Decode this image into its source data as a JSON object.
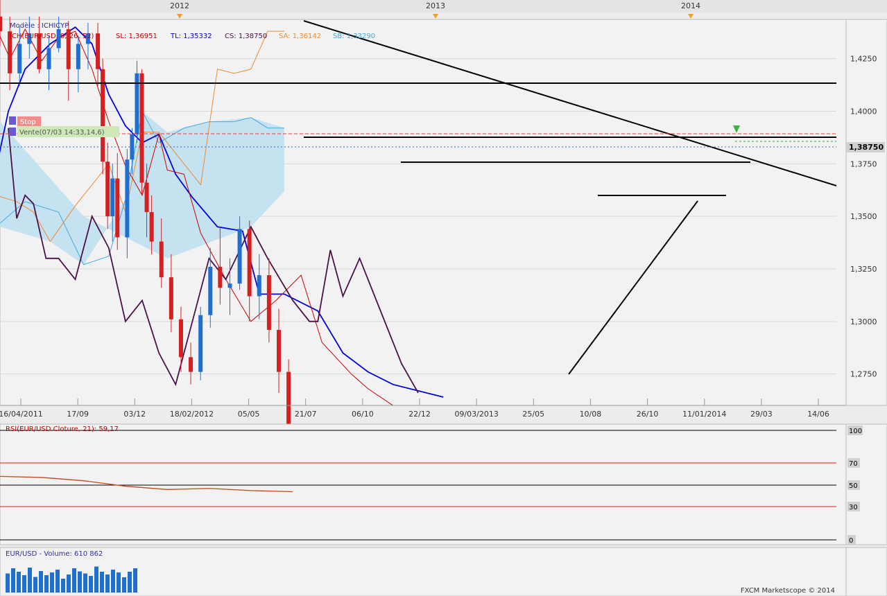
{
  "timeline_labels": {
    "years": [
      {
        "text": "2012",
        "x_date": "2012-01-01"
      },
      {
        "text": "2013",
        "x_date": "2013-01-01"
      },
      {
        "text": "2014",
        "x_date": "2014-01-01"
      }
    ]
  },
  "main_panel": {
    "legend_model": "Modèle : ICHICYP",
    "legend_ichimoku": "ICH(EUR/USD, 9, 26, 52)",
    "legend_sl": "SL: 1,36951",
    "legend_tl": "TL: 1,35332",
    "legend_cs": "CS: 1,38750",
    "legend_sa": "SA: 1,36142",
    "legend_sb": "SB: 1,33290",
    "stop_label": "Stop",
    "vente_label": "Vente(07/03 14:33,14,6)",
    "last_price_label": "1,38750",
    "x_axis_labels": [
      "16/04/2011",
      "17/09",
      "03/12",
      "18/02/2012",
      "05/05",
      "21/07",
      "06/10",
      "22/12",
      "09/03/2013",
      "25/05",
      "10/08",
      "26/10",
      "11/01/2014",
      "29/03",
      "14/06"
    ],
    "y_axis_labels": [
      "1,4250",
      "1,4000",
      "1,3750",
      "1,3500",
      "1,3250",
      "1,3000",
      "1,2750"
    ]
  },
  "rsi_panel": {
    "legend": "RSI(EUR/USD.Cloture, 21): 59,17",
    "levels": [
      "100",
      "70",
      "50",
      "30",
      "0"
    ]
  },
  "volume_panel": {
    "legend": "EUR/USD - Volume: 610 862",
    "copyright": "FXCM Marketscope © 2014"
  },
  "colors": {
    "bull": "#1e6fd0",
    "bear": "#d42020",
    "tenkan": "#cc0000",
    "kijun": "#0000dd",
    "chikou": "#4a1048",
    "senkou_a": "#f08a30",
    "senkou_b": "#45aadd",
    "cloud_bull": "#bfe0f0",
    "cloud_bear": "#f5d7bd",
    "rsi_line": "#c04a18"
  },
  "chart_data": [
    {
      "type": "candlestick",
      "title": "",
      "series": [
        {
          "name": "EUR/USD",
          "values": "weekly OHLC"
        },
        {
          "name": "SL",
          "last": 1.36951
        },
        {
          "name": "TL",
          "last": 1.35332
        },
        {
          "name": "CS",
          "last": 1.3875
        },
        {
          "name": "SA",
          "last": 1.36142
        },
        {
          "name": "SB",
          "last": 1.3329
        }
      ],
      "ylim": [
        1.265,
        1.443
      ],
      "x_range": [
        "2011-04-16",
        "2014-07-26"
      ],
      "ohlc": [
        {
          "x": "2011-04-16",
          "o": 1.445,
          "h": 1.453,
          "l": 1.431,
          "c": 1.438
        },
        {
          "x": "2011-04-30",
          "o": 1.438,
          "h": 1.445,
          "l": 1.41,
          "c": 1.418
        },
        {
          "x": "2011-05-14",
          "o": 1.418,
          "h": 1.44,
          "l": 1.412,
          "c": 1.432
        },
        {
          "x": "2011-05-28",
          "o": 1.432,
          "h": 1.445,
          "l": 1.425,
          "c": 1.437
        },
        {
          "x": "2011-06-11",
          "o": 1.437,
          "h": 1.445,
          "l": 1.418,
          "c": 1.42
        },
        {
          "x": "2011-06-25",
          "o": 1.42,
          "h": 1.436,
          "l": 1.41,
          "c": 1.43
        },
        {
          "x": "2011-07-09",
          "o": 1.43,
          "h": 1.445,
          "l": 1.428,
          "c": 1.439
        },
        {
          "x": "2011-07-23",
          "o": 1.439,
          "h": 1.443,
          "l": 1.405,
          "c": 1.42
        },
        {
          "x": "2011-08-06",
          "o": 1.42,
          "h": 1.436,
          "l": 1.409,
          "c": 1.432
        },
        {
          "x": "2011-08-20",
          "o": 1.432,
          "h": 1.442,
          "l": 1.42,
          "c": 1.437
        },
        {
          "x": "2011-09-03",
          "o": 1.437,
          "h": 1.442,
          "l": 1.412,
          "c": 1.42
        },
        {
          "x": "2011-09-10",
          "o": 1.42,
          "h": 1.425,
          "l": 1.37,
          "c": 1.376
        },
        {
          "x": "2011-09-17",
          "o": 1.376,
          "h": 1.385,
          "l": 1.344,
          "c": 1.35
        },
        {
          "x": "2011-09-24",
          "o": 1.35,
          "h": 1.375,
          "l": 1.338,
          "c": 1.368
        },
        {
          "x": "2011-10-01",
          "o": 1.368,
          "h": 1.38,
          "l": 1.334,
          "c": 1.34
        },
        {
          "x": "2011-10-15",
          "o": 1.34,
          "h": 1.382,
          "l": 1.33,
          "c": 1.377
        },
        {
          "x": "2011-10-22",
          "o": 1.377,
          "h": 1.392,
          "l": 1.37,
          "c": 1.389
        },
        {
          "x": "2011-10-29",
          "o": 1.389,
          "h": 1.424,
          "l": 1.385,
          "c": 1.418
        },
        {
          "x": "2011-11-05",
          "o": 1.418,
          "h": 1.42,
          "l": 1.36,
          "c": 1.366
        },
        {
          "x": "2011-11-12",
          "o": 1.366,
          "h": 1.375,
          "l": 1.34,
          "c": 1.352
        },
        {
          "x": "2011-11-19",
          "o": 1.352,
          "h": 1.36,
          "l": 1.332,
          "c": 1.338
        },
        {
          "x": "2011-12-03",
          "o": 1.338,
          "h": 1.349,
          "l": 1.316,
          "c": 1.321
        },
        {
          "x": "2011-12-17",
          "o": 1.321,
          "h": 1.332,
          "l": 1.295,
          "c": 1.301
        },
        {
          "x": "2011-12-31",
          "o": 1.301,
          "h": 1.307,
          "l": 1.276,
          "c": 1.283
        },
        {
          "x": "2012-01-14",
          "o": 1.283,
          "h": 1.29,
          "l": 1.27,
          "c": 1.276
        },
        {
          "x": "2012-01-28",
          "o": 1.276,
          "h": 1.307,
          "l": 1.272,
          "c": 1.303
        },
        {
          "x": "2012-02-11",
          "o": 1.303,
          "h": 1.335,
          "l": 1.297,
          "c": 1.326
        },
        {
          "x": "2012-02-25",
          "o": 1.326,
          "h": 1.345,
          "l": 1.308,
          "c": 1.316
        },
        {
          "x": "2012-03-10",
          "o": 1.316,
          "h": 1.33,
          "l": 1.303,
          "c": 1.318
        },
        {
          "x": "2012-03-24",
          "o": 1.318,
          "h": 1.35,
          "l": 1.315,
          "c": 1.344
        },
        {
          "x": "2012-04-07",
          "o": 1.344,
          "h": 1.348,
          "l": 1.3,
          "c": 1.312
        },
        {
          "x": "2012-04-21",
          "o": 1.312,
          "h": 1.332,
          "l": 1.301,
          "c": 1.322
        },
        {
          "x": "2012-05-05",
          "o": 1.322,
          "h": 1.33,
          "l": 1.29,
          "c": 1.296
        },
        {
          "x": "2012-05-19",
          "o": 1.296,
          "h": 1.306,
          "l": 1.266,
          "c": 1.276
        },
        {
          "x": "2012-06-02",
          "o": 1.276,
          "h": 1.282,
          "l": 1.23,
          "c": 1.24
        }
      ],
      "tenkan": [
        [
          -0.005,
          1.44
        ],
        [
          0.012,
          1.425
        ],
        [
          0.03,
          1.439
        ],
        [
          0.05,
          1.424
        ],
        [
          0.07,
          1.435
        ],
        [
          0.09,
          1.438
        ],
        [
          0.11,
          1.42
        ],
        [
          0.13,
          1.395
        ],
        [
          0.15,
          1.374
        ],
        [
          0.17,
          1.36
        ],
        [
          0.19,
          1.389
        ],
        [
          0.2,
          1.372
        ],
        [
          0.22,
          1.37
        ],
        [
          0.24,
          1.342
        ],
        [
          0.27,
          1.32
        ],
        [
          0.3,
          1.3
        ],
        [
          0.33,
          1.31
        ],
        [
          0.36,
          1.322
        ],
        [
          0.385,
          1.29
        ],
        [
          0.42,
          1.275
        ],
        [
          0.44,
          1.268
        ],
        [
          0.47,
          1.26
        ]
      ],
      "kijun": [
        [
          -0.005,
          1.372
        ],
        [
          0.01,
          1.4
        ],
        [
          0.03,
          1.42
        ],
        [
          0.06,
          1.432
        ],
        [
          0.09,
          1.44
        ],
        [
          0.11,
          1.432
        ],
        [
          0.13,
          1.408
        ],
        [
          0.15,
          1.393
        ],
        [
          0.17,
          1.385
        ],
        [
          0.19,
          1.389
        ],
        [
          0.21,
          1.37
        ],
        [
          0.23,
          1.359
        ],
        [
          0.26,
          1.345
        ],
        [
          0.29,
          1.343
        ],
        [
          0.31,
          1.313
        ],
        [
          0.34,
          1.313
        ],
        [
          0.38,
          1.305
        ],
        [
          0.41,
          1.285
        ],
        [
          0.44,
          1.276
        ],
        [
          0.47,
          1.27
        ],
        [
          0.53,
          1.264
        ]
      ],
      "chikou": [
        [
          0.01,
          1.392
        ],
        [
          0.02,
          1.349
        ],
        [
          0.03,
          1.36
        ],
        [
          0.04,
          1.356
        ],
        [
          0.055,
          1.33
        ],
        [
          0.07,
          1.33
        ],
        [
          0.09,
          1.32
        ],
        [
          0.11,
          1.35
        ],
        [
          0.13,
          1.335
        ],
        [
          0.15,
          1.3
        ],
        [
          0.17,
          1.31
        ],
        [
          0.19,
          1.285
        ],
        [
          0.21,
          1.27
        ],
        [
          0.23,
          1.3
        ],
        [
          0.25,
          1.33
        ],
        [
          0.27,
          1.32
        ],
        [
          0.3,
          1.345
        ],
        [
          0.32,
          1.33
        ],
        [
          0.35,
          1.31
        ],
        [
          0.37,
          1.3
        ],
        [
          0.38,
          1.3
        ],
        [
          0.395,
          1.334
        ],
        [
          0.41,
          1.312
        ],
        [
          0.43,
          1.33
        ],
        [
          0.45,
          1.31
        ],
        [
          0.48,
          1.28
        ],
        [
          0.5,
          1.266
        ]
      ],
      "senkou_a": [
        [
          -0.005,
          1.36
        ],
        [
          0.02,
          1.357
        ],
        [
          0.04,
          1.352
        ],
        [
          0.06,
          1.338
        ],
        [
          0.09,
          1.355
        ],
        [
          0.11,
          1.365
        ],
        [
          0.13,
          1.375
        ],
        [
          0.15,
          1.352
        ],
        [
          0.17,
          1.39
        ],
        [
          0.19,
          1.39
        ],
        [
          0.22,
          1.375
        ],
        [
          0.24,
          1.365
        ],
        [
          0.26,
          1.42
        ],
        [
          0.28,
          1.418
        ],
        [
          0.3,
          1.42
        ],
        [
          0.32,
          1.438
        ],
        [
          0.34,
          1.438
        ]
      ],
      "senkou_b": [
        [
          -0.005,
          1.345
        ],
        [
          0.03,
          1.357
        ],
        [
          0.07,
          1.352
        ],
        [
          0.1,
          1.327
        ],
        [
          0.13,
          1.331
        ],
        [
          0.15,
          1.358
        ],
        [
          0.17,
          1.4
        ],
        [
          0.19,
          1.385
        ],
        [
          0.22,
          1.392
        ],
        [
          0.25,
          1.395
        ],
        [
          0.28,
          1.395
        ],
        [
          0.3,
          1.397
        ],
        [
          0.32,
          1.392
        ],
        [
          0.34,
          1.392
        ]
      ],
      "cloud_bull_poly": [
        [
          0.0,
          1.395
        ],
        [
          0.1,
          1.35
        ],
        [
          0.2,
          1.33
        ],
        [
          0.3,
          1.345
        ],
        [
          0.34,
          1.362
        ],
        [
          0.34,
          1.392
        ],
        [
          0.3,
          1.397
        ],
        [
          0.25,
          1.395
        ],
        [
          0.2,
          1.39
        ],
        [
          0.17,
          1.4
        ],
        [
          0.15,
          1.358
        ],
        [
          0.1,
          1.327
        ],
        [
          0.06,
          1.338
        ],
        [
          0.0,
          1.345
        ]
      ],
      "rsi_ylim": [
        0,
        100
      ],
      "rsi": [
        [
          0.0,
          58
        ],
        [
          0.05,
          57
        ],
        [
          0.1,
          54
        ],
        [
          0.15,
          49
        ],
        [
          0.2,
          46
        ],
        [
          0.25,
          47
        ],
        [
          0.3,
          45
        ],
        [
          0.35,
          44
        ]
      ],
      "volume_scale": [
        0,
        0.8
      ]
    }
  ]
}
